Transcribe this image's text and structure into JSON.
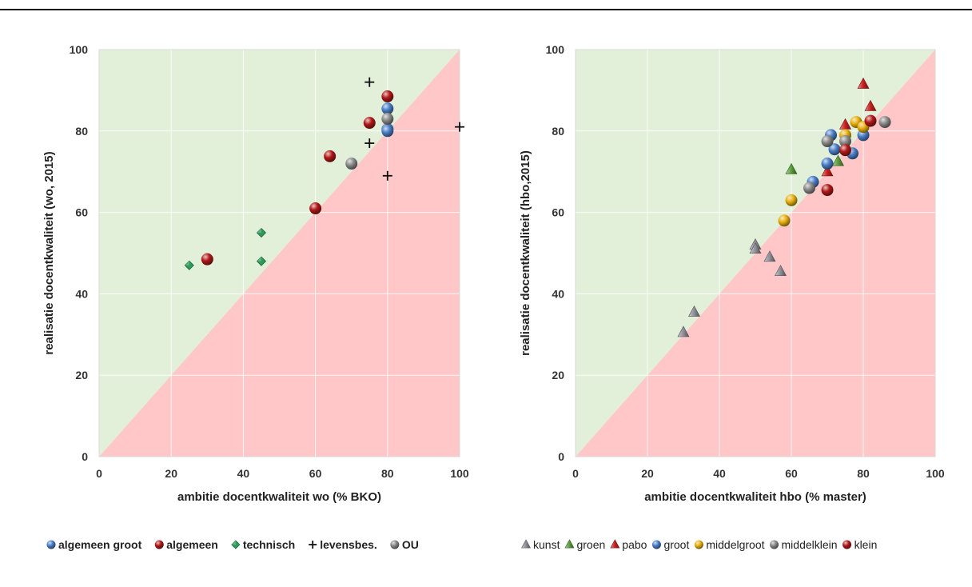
{
  "chart_data": [
    {
      "type": "scatter",
      "xlabel": "ambitie docentkwaliteit wo (% BKO)",
      "ylabel": "realisatie docentkwaliteit (wo, 2015)",
      "xlim": [
        0,
        100
      ],
      "ylim": [
        0,
        100
      ],
      "xticks": [
        "0",
        "20",
        "40",
        "60",
        "80",
        "100"
      ],
      "yticks": [
        "0",
        "20",
        "40",
        "60",
        "80",
        "100"
      ],
      "grid": true,
      "legend_position": "bottom",
      "background_regions": {
        "above_diagonal": "#e2f0d9",
        "below_diagonal": "#ffc7c7"
      },
      "series": [
        {
          "name": "algemeen groot",
          "marker": "sphere",
          "color": "#4a7ec8",
          "points": [
            [
              80,
              85.5
            ],
            [
              80,
              80.5
            ],
            [
              80,
              80
            ]
          ]
        },
        {
          "name": "algemeen",
          "marker": "sphere",
          "color": "#b01818",
          "points": [
            [
              30,
              48.5
            ],
            [
              60,
              61
            ],
            [
              64,
              73.8
            ],
            [
              75,
              82
            ],
            [
              80,
              88.5
            ]
          ]
        },
        {
          "name": "technisch",
          "marker": "diamond",
          "color": "#2e9a58",
          "points": [
            [
              25,
              47
            ],
            [
              45,
              55
            ],
            [
              45,
              48
            ],
            [
              70,
              72
            ]
          ]
        },
        {
          "name": "levensbes.",
          "marker": "plus",
          "color": "#111111",
          "points": [
            [
              75,
              92
            ],
            [
              75,
              77
            ],
            [
              80,
              69
            ],
            [
              100,
              81
            ]
          ]
        },
        {
          "name": "OU",
          "marker": "sphere",
          "color": "#8a8a8a",
          "points": [
            [
              80,
              83
            ],
            [
              70,
              72
            ]
          ]
        }
      ]
    },
    {
      "type": "scatter",
      "xlabel": "ambitie docentkwaliteit hbo (% master)",
      "ylabel": "realisatie docentkwaliteit (hbo,2015)",
      "xlim": [
        0,
        100
      ],
      "ylim": [
        0,
        100
      ],
      "xticks": [
        "0",
        "20",
        "40",
        "60",
        "80",
        "100"
      ],
      "yticks": [
        "0",
        "20",
        "40",
        "60",
        "80",
        "100"
      ],
      "grid": true,
      "legend_position": "bottom",
      "background_regions": {
        "above_diagonal": "#e2f0d9",
        "below_diagonal": "#ffc7c7"
      },
      "series": [
        {
          "name": "kunst",
          "marker": "triangle",
          "color": "#8e8e96",
          "points": [
            [
              30,
              30.5
            ],
            [
              33,
              35.5
            ],
            [
              50,
              52
            ],
            [
              50,
              51
            ],
            [
              54,
              49
            ],
            [
              57,
              45.5
            ]
          ]
        },
        {
          "name": "groen",
          "marker": "triangle",
          "color": "#5a9c3a",
          "points": [
            [
              60,
              70.5
            ],
            [
              73,
              72.5
            ]
          ]
        },
        {
          "name": "pabo",
          "marker": "triangle",
          "color": "#c81e1e",
          "points": [
            [
              80,
              91.5
            ],
            [
              82,
              86
            ],
            [
              75,
              81.5
            ],
            [
              70,
              70
            ]
          ]
        },
        {
          "name": "groot",
          "marker": "sphere",
          "color": "#4a7ec8",
          "points": [
            [
              66,
              67.5
            ],
            [
              70,
              72
            ],
            [
              72,
              75.5
            ],
            [
              71,
              79
            ],
            [
              77,
              74.5
            ],
            [
              80,
              79
            ]
          ]
        },
        {
          "name": "middelgroot",
          "marker": "sphere",
          "color": "#e8b010",
          "points": [
            [
              58,
              58
            ],
            [
              60,
              63
            ],
            [
              75,
              79
            ],
            [
              78,
              82.2
            ],
            [
              80,
              81
            ]
          ]
        },
        {
          "name": "middelklein",
          "marker": "sphere",
          "color": "#8a8a8a",
          "points": [
            [
              65,
              66
            ],
            [
              70,
              77.5
            ],
            [
              75,
              77.5
            ],
            [
              86,
              82.2
            ]
          ]
        },
        {
          "name": "klein",
          "marker": "sphere",
          "color": "#b01818",
          "points": [
            [
              70,
              65.5
            ],
            [
              75,
              75.3
            ],
            [
              82,
              82.5
            ]
          ]
        }
      ]
    }
  ]
}
